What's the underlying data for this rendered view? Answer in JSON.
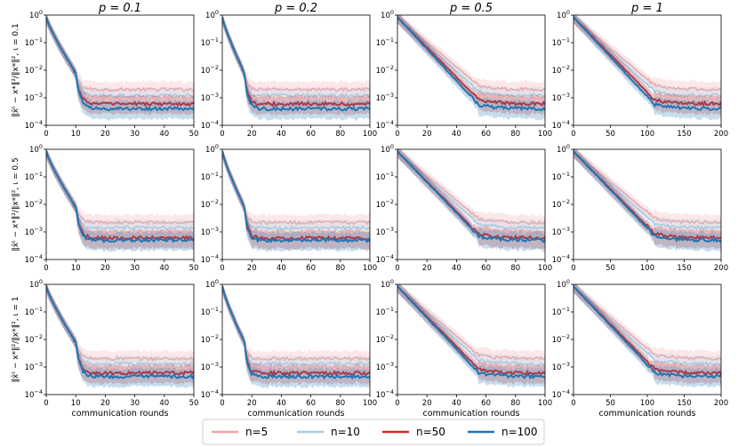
{
  "chart_data": {
    "type": "line",
    "layout": "grid-3x4",
    "y_scale": "log",
    "ylim": [
      0.0001,
      1
    ],
    "y_ticks": [
      {
        "value": 1,
        "base": "10",
        "exp": "0"
      },
      {
        "value": 0.1,
        "base": "10",
        "exp": "−1"
      },
      {
        "value": 0.01,
        "base": "10",
        "exp": "−2"
      },
      {
        "value": 0.001,
        "base": "10",
        "exp": "−3"
      },
      {
        "value": 0.0001,
        "base": "10",
        "exp": "−4"
      }
    ],
    "column_titles": [
      "p = 0.1",
      "p = 0.2",
      "p = 0.5",
      "p = 1"
    ],
    "row_labels": [
      "‖x̄ᵗ − x*‖²/‖x*‖², ι = 0.1",
      "‖x̄ᵗ − x*‖²/‖x*‖², ι = 0.5",
      "‖x̄ᵗ − x*‖²/‖x*‖², ι = 1"
    ],
    "xlabel": "communication rounds",
    "columns": [
      {
        "xlim": [
          0,
          50
        ],
        "xticks": [
          "0",
          "10",
          "20",
          "30",
          "40",
          "50"
        ],
        "drop_round": 10
      },
      {
        "xlim": [
          0,
          100
        ],
        "xticks": [
          "0",
          "20",
          "40",
          "60",
          "80",
          "100"
        ],
        "drop_round": 15
      },
      {
        "xlim": [
          0,
          100
        ],
        "xticks": [
          "0",
          "20",
          "40",
          "60",
          "80",
          "100"
        ],
        "drop_round": 55
      },
      {
        "xlim": [
          0,
          200
        ],
        "xticks": [
          "0",
          "50",
          "100",
          "150",
          "200"
        ],
        "drop_round": 110
      }
    ],
    "series": [
      {
        "name": "n=5",
        "color": "#f4a3a6",
        "plateau": [
          0.002,
          0.0022,
          0.002
        ]
      },
      {
        "name": "n=10",
        "color": "#a6cbe3",
        "plateau": [
          0.0012,
          0.0014,
          0.0013
        ]
      },
      {
        "name": "n=50",
        "color": "#d62728",
        "plateau": [
          0.0006,
          0.0006,
          0.0006
        ]
      },
      {
        "name": "n=100",
        "color": "#1f77b4",
        "plateau": [
          0.0004,
          0.0005,
          0.00045
        ]
      }
    ],
    "legend_position": "bottom"
  }
}
